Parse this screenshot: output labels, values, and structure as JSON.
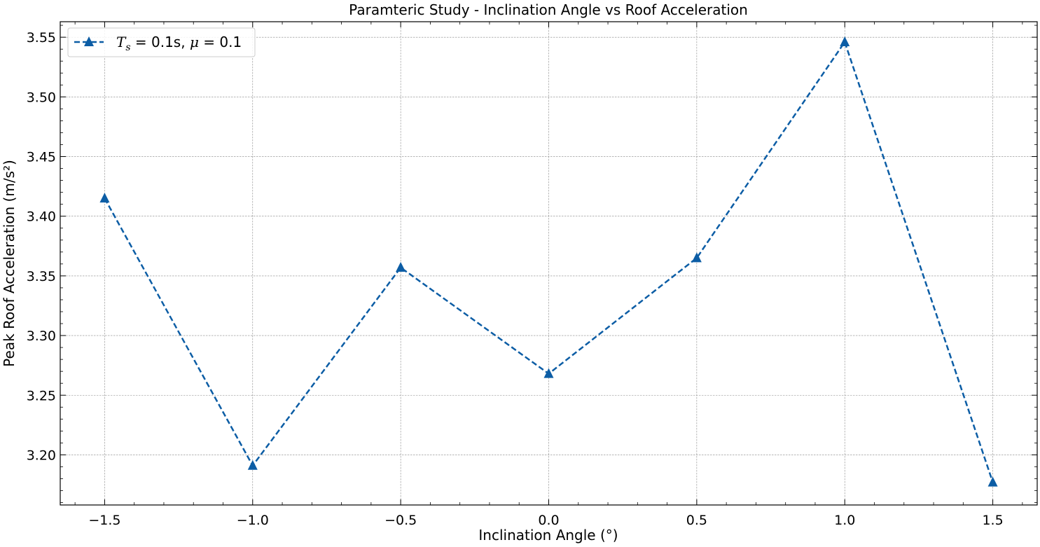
{
  "chart_data": {
    "type": "line",
    "title": "Paramteric Study - Inclination Angle vs Roof Acceleration",
    "xlabel": "Inclination Angle (°)",
    "ylabel": "Peak Roof Acceleration (m/s²)",
    "xlim": [
      -1.65,
      1.65
    ],
    "ylim": [
      3.158,
      3.563
    ],
    "x_ticks": [
      -1.5,
      -1.0,
      -0.5,
      0.0,
      0.5,
      1.0,
      1.5
    ],
    "x_tick_labels": [
      "−1.5",
      "−1.0",
      "−0.5",
      "0.0",
      "0.5",
      "1.0",
      "1.5"
    ],
    "y_ticks": [
      3.2,
      3.25,
      3.3,
      3.35,
      3.4,
      3.45,
      3.5,
      3.55
    ],
    "y_tick_labels": [
      "3.20",
      "3.25",
      "3.30",
      "3.35",
      "3.40",
      "3.45",
      "3.50",
      "3.55"
    ],
    "grid": true,
    "legend_position": "top-left",
    "series": [
      {
        "legend": {
          "T": "T",
          "s": "s",
          "eq1": " = 0.1s, ",
          "mu": "μ",
          "eq2": " = 0.1"
        },
        "color": "#0c5da5",
        "marker": "triangle-up",
        "line_style": "dashed",
        "x": [
          -1.5,
          -1.0,
          -0.5,
          0.0,
          0.5,
          1.0,
          1.5
        ],
        "y": [
          3.415,
          3.191,
          3.357,
          3.268,
          3.365,
          3.546,
          3.177
        ]
      }
    ]
  }
}
